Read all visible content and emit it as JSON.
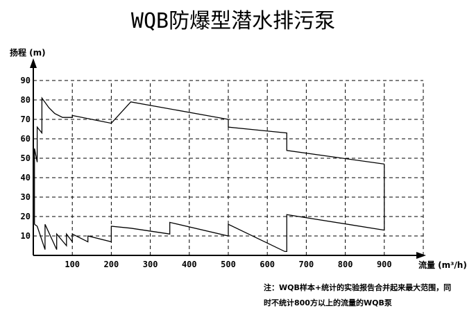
{
  "chart_data": {
    "type": "line",
    "title": "WQB防爆型潜水排污泵",
    "ylabel": "扬程 (m)",
    "xlabel": "流量 (m³/h)",
    "xlim": [
      0,
      1000
    ],
    "ylim": [
      0,
      100
    ],
    "x_ticks": [
      100,
      200,
      300,
      400,
      500,
      600,
      700,
      800,
      900
    ],
    "y_ticks": [
      10,
      20,
      30,
      40,
      50,
      60,
      70,
      80,
      90
    ],
    "grid": true,
    "series": [
      {
        "values": [
          [
            3,
            16
          ],
          [
            3,
            55
          ],
          [
            10,
            48
          ],
          [
            10,
            66
          ],
          [
            22,
            63
          ],
          [
            22,
            81
          ],
          [
            40,
            76
          ],
          [
            55,
            73
          ],
          [
            75,
            71
          ],
          [
            100,
            71
          ],
          [
            100,
            72
          ],
          [
            200,
            68
          ],
          [
            250,
            79
          ],
          [
            500,
            70
          ],
          [
            500,
            66
          ],
          [
            650,
            63
          ],
          [
            650,
            54
          ],
          [
            900,
            47
          ]
        ]
      },
      {
        "values": [
          [
            3,
            16
          ],
          [
            10,
            15
          ],
          [
            30,
            3
          ],
          [
            30,
            16
          ],
          [
            60,
            3
          ],
          [
            60,
            11
          ],
          [
            85,
            5
          ],
          [
            85,
            11
          ],
          [
            100,
            7
          ],
          [
            100,
            11
          ],
          [
            140,
            7
          ],
          [
            140,
            10
          ],
          [
            200,
            7
          ],
          [
            200,
            15
          ],
          [
            250,
            14
          ],
          [
            350,
            11
          ],
          [
            350,
            17
          ],
          [
            500,
            10
          ],
          [
            500,
            16
          ],
          [
            645,
            2
          ],
          [
            650,
            2
          ],
          [
            650,
            21
          ],
          [
            900,
            13
          ],
          [
            900,
            47
          ]
        ]
      }
    ],
    "note_line1": "注：WQB样本+统计的实验报告合并起来最大范围，同",
    "note_line2": "时不统计800方以上的流量的WQB泵"
  }
}
